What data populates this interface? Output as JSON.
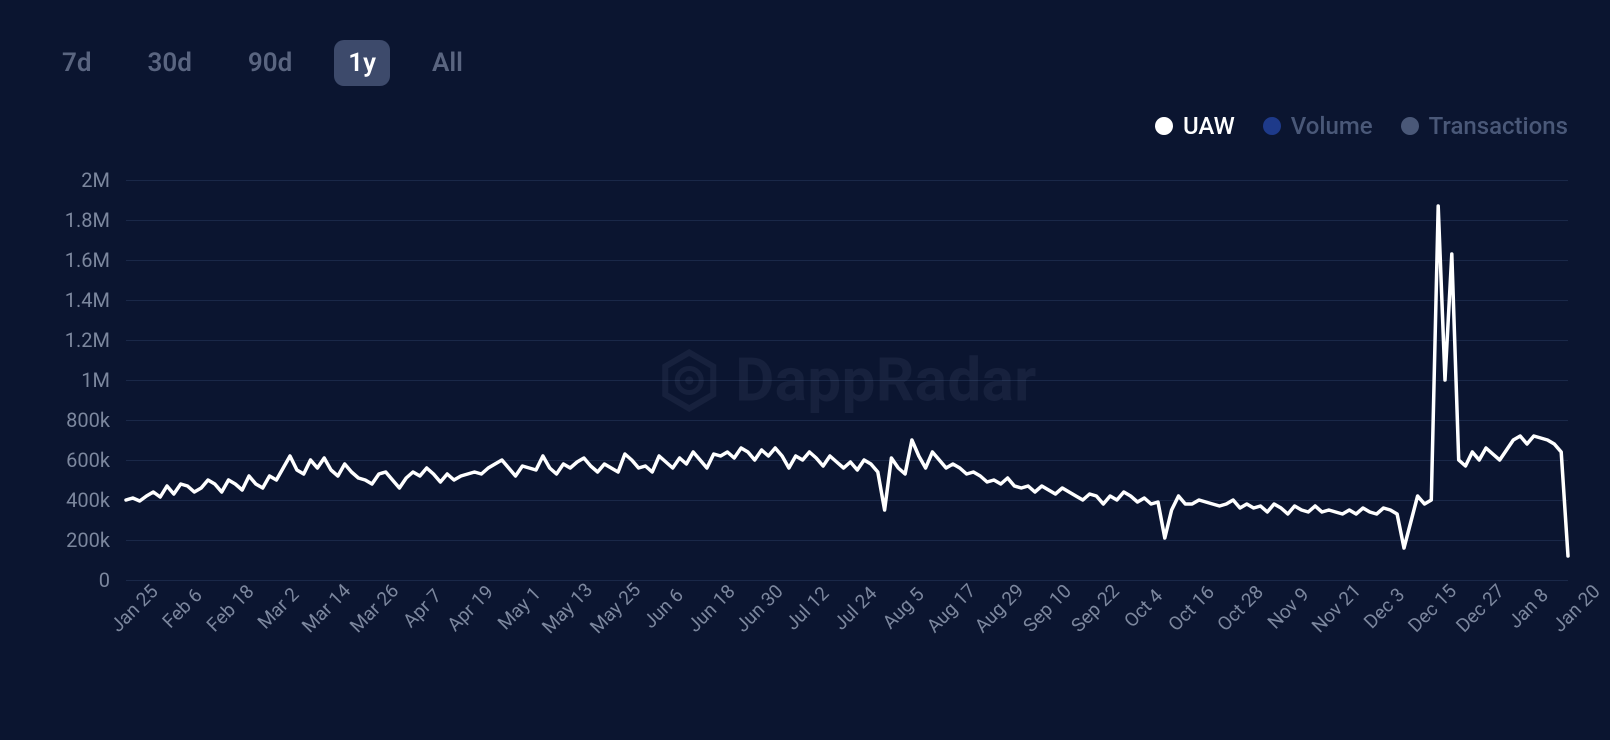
{
  "colors": {
    "background": "#0b1530",
    "grid": "#1a2848",
    "axis_label": "#7c879e",
    "filter_inactive": "#5a6580",
    "filter_active_bg": "#3d4a6b",
    "filter_active_text": "#ffffff",
    "watermark": "#8090b0"
  },
  "time_filters": {
    "items": [
      "7d",
      "30d",
      "90d",
      "1y",
      "All"
    ],
    "active_index": 3
  },
  "legend": {
    "items": [
      {
        "label": "UAW",
        "color": "#ffffff",
        "label_color": "#ffffff",
        "active": true
      },
      {
        "label": "Volume",
        "color": "#1e3a8a",
        "label_color": "#4a5878",
        "active": false
      },
      {
        "label": "Transactions",
        "color": "#4a5878",
        "label_color": "#4a5878",
        "active": false
      }
    ]
  },
  "watermark_text": "DappRadar",
  "chart": {
    "type": "line",
    "series_name": "UAW",
    "line_color": "#ffffff",
    "line_width": 3.5,
    "background_color": "#0b1530",
    "grid_color": "#1a2848",
    "ylim": [
      0,
      2000000
    ],
    "ytick_step": 200000,
    "y_ticks": [
      {
        "value": 0,
        "label": "0"
      },
      {
        "value": 200000,
        "label": "200k"
      },
      {
        "value": 400000,
        "label": "400k"
      },
      {
        "value": 600000,
        "label": "600k"
      },
      {
        "value": 800000,
        "label": "800k"
      },
      {
        "value": 1000000,
        "label": "1M"
      },
      {
        "value": 1200000,
        "label": "1.2M"
      },
      {
        "value": 1400000,
        "label": "1.4M"
      },
      {
        "value": 1600000,
        "label": "1.6M"
      },
      {
        "value": 1800000,
        "label": "1.8M"
      },
      {
        "value": 2000000,
        "label": "2M"
      }
    ],
    "x_ticks": [
      "Jan 25",
      "Feb 6",
      "Feb 18",
      "Mar 2",
      "Mar 14",
      "Mar 26",
      "Apr 7",
      "Apr 19",
      "May 1",
      "May 13",
      "May 25",
      "Jun 6",
      "Jun 18",
      "Jun 30",
      "Jul 12",
      "Jul 24",
      "Aug 5",
      "Aug 17",
      "Aug 29",
      "Sep 10",
      "Sep 22",
      "Oct 4",
      "Oct 16",
      "Oct 28",
      "Nov 9",
      "Nov 21",
      "Dec 3",
      "Dec 15",
      "Dec 27",
      "Jan 8",
      "Jan 20"
    ],
    "values": [
      400000,
      410000,
      395000,
      420000,
      440000,
      415000,
      470000,
      430000,
      480000,
      470000,
      440000,
      460000,
      500000,
      480000,
      440000,
      500000,
      480000,
      450000,
      520000,
      480000,
      460000,
      520000,
      500000,
      560000,
      620000,
      550000,
      530000,
      600000,
      560000,
      610000,
      550000,
      520000,
      580000,
      540000,
      510000,
      500000,
      480000,
      530000,
      540000,
      500000,
      460000,
      510000,
      540000,
      520000,
      560000,
      530000,
      490000,
      530000,
      500000,
      520000,
      530000,
      540000,
      530000,
      560000,
      580000,
      600000,
      560000,
      520000,
      570000,
      560000,
      550000,
      620000,
      560000,
      530000,
      580000,
      560000,
      590000,
      610000,
      570000,
      540000,
      580000,
      560000,
      540000,
      630000,
      600000,
      560000,
      570000,
      540000,
      620000,
      590000,
      560000,
      610000,
      580000,
      640000,
      600000,
      560000,
      630000,
      620000,
      640000,
      610000,
      660000,
      640000,
      600000,
      650000,
      620000,
      660000,
      620000,
      560000,
      620000,
      600000,
      640000,
      610000,
      570000,
      620000,
      590000,
      560000,
      590000,
      550000,
      600000,
      580000,
      540000,
      350000,
      610000,
      560000,
      530000,
      700000,
      620000,
      560000,
      640000,
      600000,
      560000,
      580000,
      560000,
      530000,
      540000,
      520000,
      490000,
      500000,
      480000,
      510000,
      470000,
      460000,
      470000,
      440000,
      470000,
      450000,
      430000,
      460000,
      440000,
      420000,
      400000,
      430000,
      420000,
      380000,
      420000,
      400000,
      440000,
      420000,
      390000,
      410000,
      380000,
      390000,
      210000,
      350000,
      420000,
      380000,
      380000,
      400000,
      390000,
      380000,
      370000,
      380000,
      400000,
      360000,
      380000,
      360000,
      370000,
      340000,
      380000,
      360000,
      330000,
      370000,
      350000,
      340000,
      370000,
      340000,
      350000,
      340000,
      330000,
      350000,
      330000,
      360000,
      340000,
      330000,
      360000,
      350000,
      330000,
      160000,
      290000,
      420000,
      380000,
      400000,
      1870000,
      1000000,
      1630000,
      600000,
      570000,
      640000,
      600000,
      660000,
      630000,
      600000,
      650000,
      700000,
      720000,
      680000,
      720000,
      710000,
      700000,
      680000,
      640000,
      120000
    ]
  }
}
